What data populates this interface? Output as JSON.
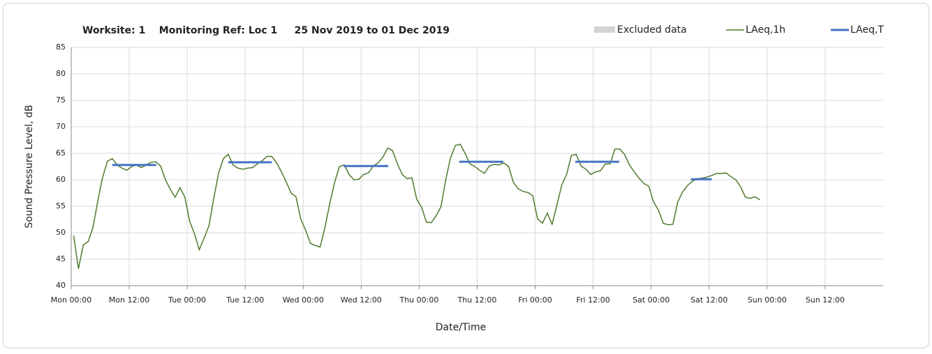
{
  "chart_data": {
    "type": "line",
    "title": "Worksite: 1    Monitoring Ref: Loc 1     25 Nov 2019 to 01 Dec 2019",
    "x_label": "Date/Time",
    "y_label": "Sound Pressure Level, dB",
    "xlim": [
      0,
      168
    ],
    "xticks": [
      {
        "value": 0,
        "label": "Mon 00:00"
      },
      {
        "value": 12,
        "label": "Mon 12:00"
      },
      {
        "value": 24,
        "label": "Tue 00:00"
      },
      {
        "value": 36,
        "label": "Tue 12:00"
      },
      {
        "value": 48,
        "label": "Wed 00:00"
      },
      {
        "value": 60,
        "label": "Wed 12:00"
      },
      {
        "value": 72,
        "label": "Thu 00:00"
      },
      {
        "value": 84,
        "label": "Thu 12:00"
      },
      {
        "value": 96,
        "label": "Fri 00:00"
      },
      {
        "value": 108,
        "label": "Fri 12:00"
      },
      {
        "value": 120,
        "label": "Sat 00:00"
      },
      {
        "value": 132,
        "label": "Sat 12:00"
      },
      {
        "value": 144,
        "label": "Sun 00:00"
      },
      {
        "value": 156,
        "label": "Sun 12:00"
      }
    ],
    "ylim": [
      40,
      85
    ],
    "yticks": [
      40,
      45,
      50,
      55,
      60,
      65,
      70,
      75,
      80,
      85
    ],
    "grid": true,
    "excluded": {
      "name": "Excluded data",
      "color": "#d3d3d3"
    },
    "series": [
      {
        "name": "LAeq,1h",
        "color": "#4e7a2e",
        "x": [
          0.5,
          1.5,
          2.5,
          3.5,
          4.5,
          5.5,
          6.5,
          7.5,
          8.5,
          9.5,
          10.5,
          11.5,
          12.5,
          13.5,
          14.5,
          15.5,
          16.5,
          17.5,
          18.5,
          19.5,
          20.5,
          21.5,
          22.5,
          23.5,
          24.5,
          25.5,
          26.5,
          27.5,
          28.5,
          29.5,
          30.5,
          31.5,
          32.5,
          33.5,
          34.5,
          35.5,
          36.5,
          37.5,
          38.5,
          39.5,
          40.5,
          41.5,
          42.5,
          43.5,
          44.5,
          45.5,
          46.5,
          47.5,
          48.5,
          49.5,
          50.5,
          51.5,
          52.5,
          53.5,
          54.5,
          55.5,
          56.5,
          57.5,
          58.5,
          59.5,
          60.5,
          61.5,
          62.5,
          63.5,
          64.5,
          65.5,
          66.5,
          67.5,
          68.5,
          69.5,
          70.5,
          71.5,
          72.5,
          73.5,
          74.5,
          75.5,
          76.5,
          77.5,
          78.5,
          79.5,
          80.5,
          81.5,
          82.5,
          83.5,
          84.5,
          85.5,
          86.5,
          87.5,
          88.5,
          89.5,
          90.5,
          91.5,
          92.5,
          93.5,
          94.5,
          95.5,
          96.5,
          97.5,
          98.5,
          99.5,
          100.5,
          101.5,
          102.5,
          103.5,
          104.5,
          105.5,
          106.5,
          107.5,
          108.5,
          109.5,
          110.5,
          111.5,
          112.5,
          113.5,
          114.5,
          115.5,
          116.5,
          117.5,
          118.5,
          119.5,
          120.5,
          121.5,
          122.5,
          123.5,
          124.5,
          125.5,
          126.5,
          127.5,
          128.5,
          129.5,
          130.5,
          131.5,
          132.5,
          133.5,
          134.5,
          135.5,
          136.5,
          137.5,
          138.5,
          139.5,
          140.5,
          141.5,
          142.5
        ],
        "values": [
          49.5,
          43.2,
          47.7,
          48.3,
          51,
          56,
          60.5,
          63.5,
          64,
          62.8,
          62.2,
          61.8,
          62.5,
          62.8,
          62.3,
          62.8,
          63.3,
          63.4,
          62.6,
          60,
          58.2,
          56.7,
          58.5,
          56.8,
          52.2,
          49.8,
          46.8,
          49,
          51.3,
          56.5,
          61.3,
          64,
          64.8,
          62.8,
          62.2,
          62,
          62.2,
          62.3,
          63,
          63.6,
          64.4,
          64.4,
          63.2,
          61.5,
          59.6,
          57.5,
          56.8,
          52.6,
          50.5,
          48,
          47.6,
          47.3,
          51,
          55.5,
          59.5,
          62.5,
          62.8,
          61,
          60,
          60.1,
          61,
          61.3,
          62.6,
          63.2,
          64.3,
          66,
          65.5,
          63,
          61,
          60.2,
          60.4,
          56.3,
          54.8,
          52,
          51.9,
          53.2,
          54.9,
          60,
          64.2,
          66.5,
          66.7,
          65,
          63,
          62.5,
          61.8,
          61.2,
          62.6,
          62.9,
          62.8,
          63.2,
          62.5,
          59.5,
          58.3,
          57.8,
          57.6,
          57,
          52.6,
          51.8,
          53.7,
          51.6,
          55.2,
          59,
          61,
          64.6,
          64.8,
          62.6,
          62,
          61,
          61.5,
          61.7,
          63,
          63,
          65.8,
          65.8,
          64.8,
          62.8,
          61.5,
          60.3,
          59.3,
          58.8,
          55.8,
          54.3,
          51.8,
          51.5,
          51.6,
          55.8,
          57.7,
          58.9,
          59.7,
          60.2,
          60.3,
          60.5,
          60.8,
          61.2,
          61.2,
          61.3,
          60.6,
          60,
          58.7,
          56.7,
          56.5,
          56.8,
          56.2
        ]
      },
      {
        "name": "LAeq,T",
        "color": "#4472c4",
        "x_start": [
          8.5,
          32.5,
          56.4,
          80.3,
          104.3,
          128.2
        ],
        "x_end": [
          17.6,
          41.5,
          65.6,
          89.4,
          113.4,
          132.5
        ],
        "values": [
          62.8,
          63.3,
          62.6,
          63.4,
          63.4,
          60.1
        ]
      }
    ]
  }
}
